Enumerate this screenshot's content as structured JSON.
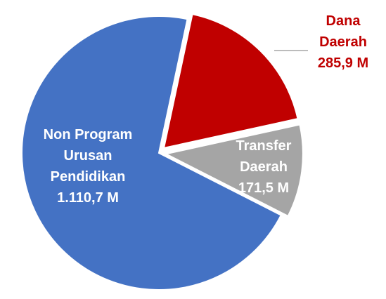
{
  "chart_data": {
    "type": "pie",
    "categories": [
      "Dana Daerah",
      "Transfer Daerah",
      "Non Program Urusan Pendidikan"
    ],
    "values": [
      285.9,
      171.5,
      1110.7
    ],
    "value_labels": [
      "285,9 M",
      "171,5 M",
      "1.110,7 M"
    ],
    "colors": [
      "#c00000",
      "#a5a5a5",
      "#4472c4"
    ]
  }
}
